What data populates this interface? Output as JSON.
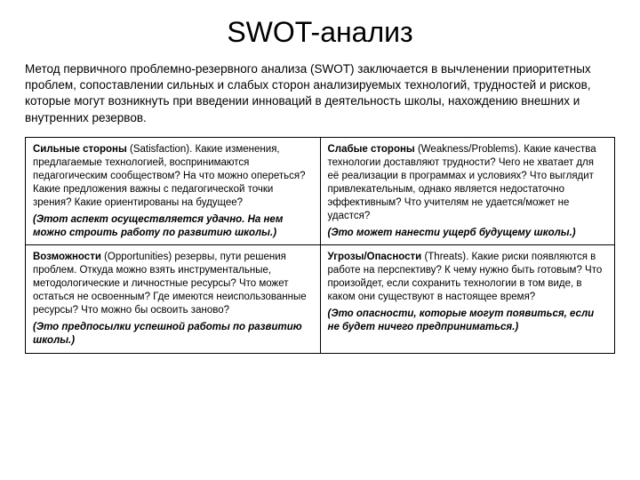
{
  "title": "SWOT-анализ",
  "intro": "Метод первичного проблемно-резервного анализа (SWOT) заключается в вычленении приоритетных проблем, сопоставлении сильных и слабых сторон анализируемых технологий, трудностей и рисков, которые могут возникнуть при введении инноваций в деятельность школы, нахождению внешних и внутренних резервов.",
  "table": {
    "type": "table",
    "columns": 2,
    "rows": 2,
    "border_color": "#000000",
    "background_color": "#ffffff",
    "cell_fontsize": 11.5,
    "cells": {
      "r0c0": {
        "label": "Сильные стороны",
        "paren": " (Satisfaction). ",
        "body": "Какие изменения, предлагаемые технологией, воспринимаются педагогическим сообществом? На что можно опереться? Какие предложения важны с педагогической точки зрения? Какие ориентированы на будущее?",
        "note": "(Этот аспект осуществляется удачно. На нем можно строить работу по развитию школы.)"
      },
      "r0c1": {
        "label": "Слабые стороны",
        "paren": " (Weakness/Problems). ",
        "body": "Какие качества технологии доставляют трудности? Чего не хватает для её реализации в программах и условиях? Что выглядит привлекательным, однако является недостаточно эффективным? Что учителям не удается/может не удастся?",
        "note": "(Это может нанести ущерб будущему школы.)"
      },
      "r1c0": {
        "label": "Возможности",
        "paren": " (Opportunities) ",
        "body": "резервы, пути решения проблем. Откуда можно взять инструментальные, методологические и личностные ресурсы? Что может остаться не освоенным? Где имеются неиспользованные ресурсы? Что можно бы освоить заново?",
        "note": "(Это предпосылки успешной работы по развитию школы.)"
      },
      "r1c1": {
        "label": "Угрозы/Опасности",
        "paren": " (Threats). ",
        "body": "Какие риски появляются в работе на перспективу? К чему нужно быть готовым? Что произойдет, если сохранить технологии в том виде, в каком они существуют в настоящее время?",
        "note": "(Это опасности, которые могут появиться, если не будет ничего предприниматься.)"
      }
    }
  },
  "styles": {
    "title_fontsize": 32,
    "intro_fontsize": 13.5,
    "text_color": "#000000",
    "background_color": "#ffffff"
  }
}
